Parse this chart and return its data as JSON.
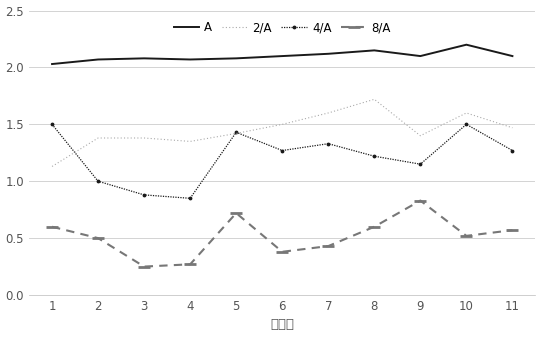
{
  "x": [
    1,
    2,
    3,
    4,
    5,
    6,
    7,
    8,
    9,
    10,
    11
  ],
  "A": [
    2.03,
    2.07,
    2.08,
    2.07,
    2.08,
    2.1,
    2.12,
    2.15,
    2.1,
    2.2,
    2.1
  ],
  "2A": [
    1.13,
    1.38,
    1.38,
    1.35,
    1.42,
    1.5,
    1.6,
    1.72,
    1.4,
    1.6,
    1.47
  ],
  "4A": [
    1.5,
    1.0,
    0.88,
    0.85,
    1.43,
    1.27,
    1.33,
    1.22,
    1.15,
    1.5,
    1.27
  ],
  "8A": [
    0.6,
    0.5,
    0.25,
    0.27,
    0.72,
    0.38,
    0.43,
    0.6,
    0.83,
    0.52,
    0.57
  ],
  "xlabel": "平均数",
  "ylim": [
    0,
    2.5
  ],
  "yticks": [
    0,
    0.5,
    1.0,
    1.5,
    2.0,
    2.5
  ],
  "xticks": [
    1,
    2,
    3,
    4,
    5,
    6,
    7,
    8,
    9,
    10,
    11
  ],
  "legend_labels": [
    "A",
    "2/A",
    "4/A",
    "8/A"
  ],
  "color_A": "#1a1a1a",
  "color_2A": "#aaaaaa",
  "color_4A": "#1a1a1a",
  "color_8A": "#777777",
  "bg_color": "#ffffff",
  "grid_color": "#cccccc",
  "grid_color_h": "#dddddd"
}
